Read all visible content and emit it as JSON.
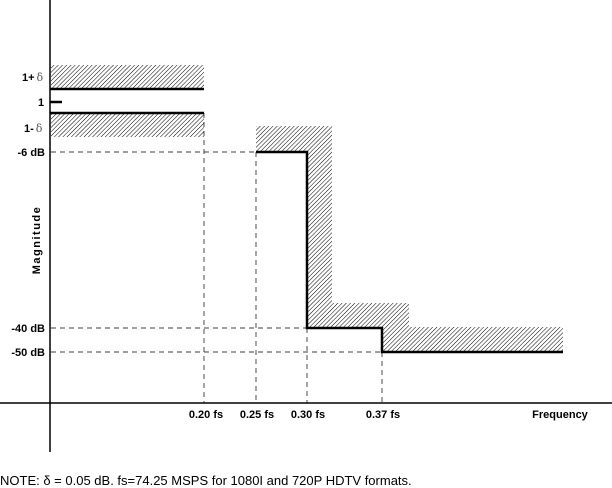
{
  "diagram": {
    "y_axis_label": "Magnitude",
    "x_axis_label": "Frequency",
    "y_ticks": {
      "one_plus_delta_prefix": "1+",
      "one": "1",
      "one_minus_delta_prefix": "1-",
      "delta_symbol": "δ",
      "minus6": "-6 dB",
      "minus40": "-40 dB",
      "minus50": "-50 dB"
    },
    "x_ticks": [
      "0.20 fs",
      "0.25 fs",
      "0.30 fs",
      "0.37 fs"
    ],
    "note": "NOTE: δ = 0.05 dB. fs=74.25 MSPS for 1080I and 720P HDTV formats."
  }
}
